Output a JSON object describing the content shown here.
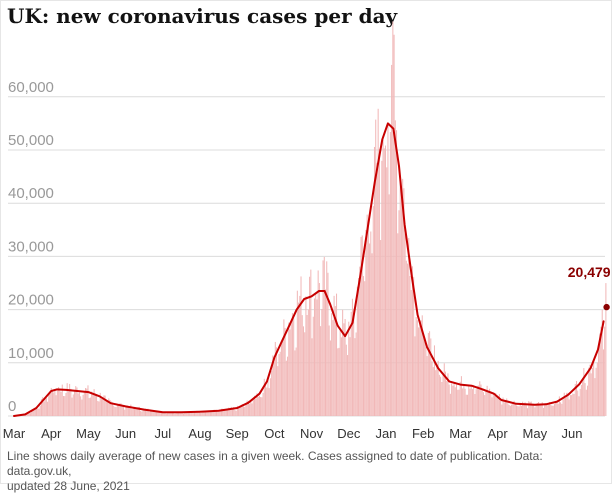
{
  "title": "UK: new coronavirus cases per day",
  "footnote_line1": "Line shows daily average of new cases in a given week. Cases assigned to date of publication. Data: data.gov.uk,",
  "footnote_line2": "updated 28 June, 2021",
  "chart_data": {
    "type": "bar",
    "title": "UK: new coronavirus cases per day",
    "xlabel": "",
    "ylabel": "",
    "ylim": [
      0,
      68000
    ],
    "yticks": [
      0,
      10000,
      20000,
      30000,
      40000,
      50000,
      60000
    ],
    "ytick_labels": [
      "0",
      "10,000",
      "20,000",
      "30,000",
      "40,000",
      "50,000",
      "60,000"
    ],
    "xtick_labels": [
      "Mar",
      "Apr",
      "May",
      "Jun",
      "Jul",
      "Aug",
      "Sep",
      "Oct",
      "Nov",
      "Dec",
      "Jan",
      "Feb",
      "Mar",
      "Apr",
      "May",
      "Jun"
    ],
    "xtick_months": [
      0,
      1,
      2,
      3,
      4,
      5,
      6,
      7,
      8,
      9,
      10,
      11,
      12,
      13,
      14,
      15
    ],
    "grid": true,
    "colors": {
      "bars": "#f1b8b8",
      "line": "#c70000",
      "grid": "#dcdcdc",
      "annotation": "#8b0000"
    },
    "annotation": {
      "label": "20,479",
      "value": 20479,
      "month": 15.93
    },
    "daily_avg_line": [
      [
        0,
        0
      ],
      [
        0.3,
        300
      ],
      [
        0.6,
        1500
      ],
      [
        0.85,
        3500
      ],
      [
        1.0,
        4700
      ],
      [
        1.15,
        5000
      ],
      [
        1.4,
        4900
      ],
      [
        1.7,
        4700
      ],
      [
        2.0,
        4500
      ],
      [
        2.3,
        3700
      ],
      [
        2.6,
        2400
      ],
      [
        3.0,
        1800
      ],
      [
        3.5,
        1200
      ],
      [
        4.0,
        700
      ],
      [
        4.5,
        700
      ],
      [
        5.0,
        800
      ],
      [
        5.5,
        1000
      ],
      [
        6.0,
        1500
      ],
      [
        6.3,
        2500
      ],
      [
        6.6,
        4200
      ],
      [
        6.8,
        6500
      ],
      [
        7.0,
        11000
      ],
      [
        7.2,
        14000
      ],
      [
        7.4,
        17000
      ],
      [
        7.6,
        20000
      ],
      [
        7.8,
        22000
      ],
      [
        8.0,
        22500
      ],
      [
        8.2,
        23500
      ],
      [
        8.35,
        23500
      ],
      [
        8.5,
        21000
      ],
      [
        8.7,
        17000
      ],
      [
        8.9,
        15000
      ],
      [
        9.1,
        17500
      ],
      [
        9.3,
        26000
      ],
      [
        9.5,
        35000
      ],
      [
        9.7,
        44000
      ],
      [
        9.9,
        52000
      ],
      [
        10.05,
        55000
      ],
      [
        10.2,
        54000
      ],
      [
        10.35,
        47000
      ],
      [
        10.5,
        36000
      ],
      [
        10.7,
        26000
      ],
      [
        10.85,
        19000
      ],
      [
        11.1,
        13000
      ],
      [
        11.4,
        9000
      ],
      [
        11.7,
        6500
      ],
      [
        12.0,
        5900
      ],
      [
        12.3,
        5700
      ],
      [
        12.6,
        5000
      ],
      [
        12.9,
        4200
      ],
      [
        13.1,
        3000
      ],
      [
        13.5,
        2300
      ],
      [
        14.0,
        2100
      ],
      [
        14.3,
        2200
      ],
      [
        14.6,
        2700
      ],
      [
        14.9,
        4000
      ],
      [
        15.2,
        6000
      ],
      [
        15.5,
        9000
      ],
      [
        15.7,
        12500
      ],
      [
        15.85,
        17800
      ]
    ]
  }
}
